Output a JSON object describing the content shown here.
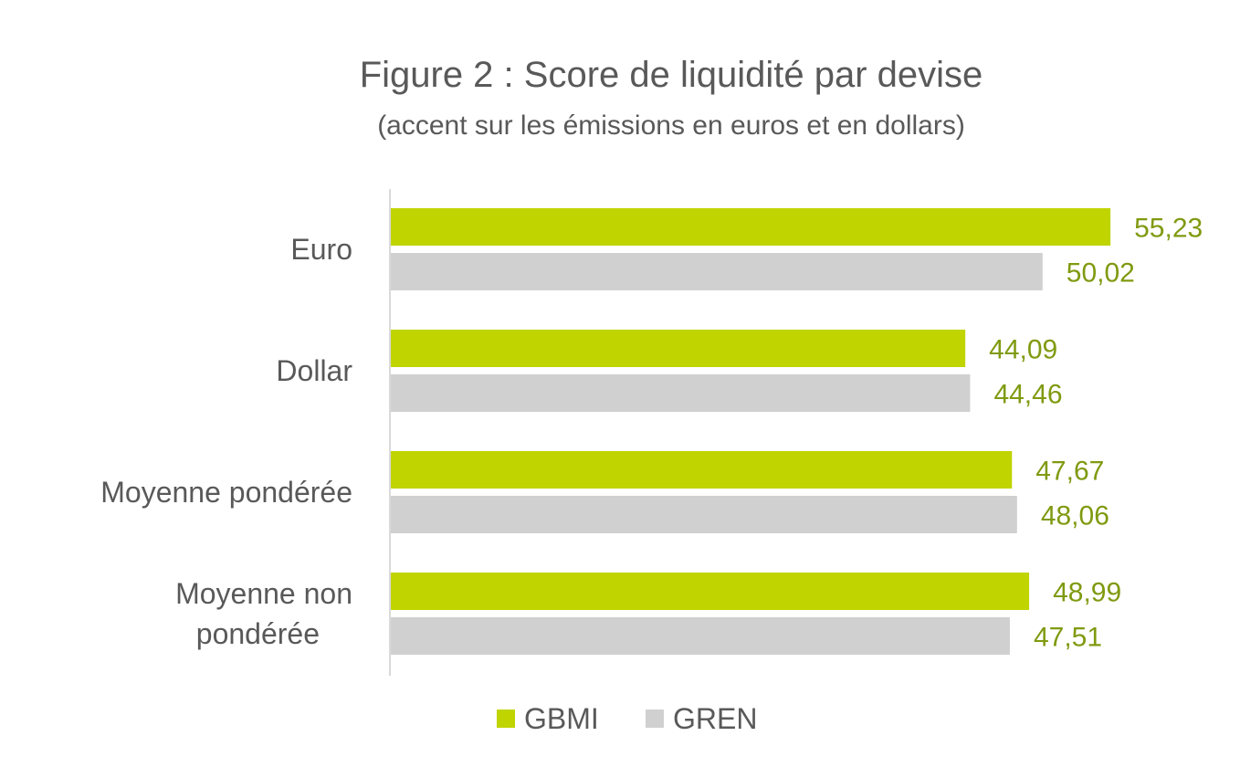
{
  "chart_data": {
    "type": "bar",
    "orientation": "horizontal",
    "title": "Figure 2 : Score de liquidité par devise",
    "subtitle": "(accent sur les émissions en euros et en dollars)",
    "categories": [
      [
        "Euro"
      ],
      [
        "Dollar"
      ],
      [
        "Moyenne pondérée"
      ],
      [
        "Moyenne non",
        "pondérée"
      ]
    ],
    "series": [
      {
        "name": "GBMI",
        "color": "#c0d400",
        "values": [
          55.23,
          44.09,
          47.67,
          48.99
        ],
        "labels": [
          "55,23",
          "44,09",
          "47,67",
          "48,99"
        ]
      },
      {
        "name": "GREN",
        "color": "#d0d0d0",
        "values": [
          50.02,
          44.46,
          48.06,
          47.51
        ],
        "labels": [
          "50,02",
          "44,46",
          "48,06",
          "47,51"
        ]
      }
    ],
    "xlim": [
      0,
      60
    ],
    "grid": false,
    "legend_position": "bottom",
    "data_label_color": "#7f9a10",
    "text_color": "#595959",
    "axis_color": "#d9d9d9"
  }
}
